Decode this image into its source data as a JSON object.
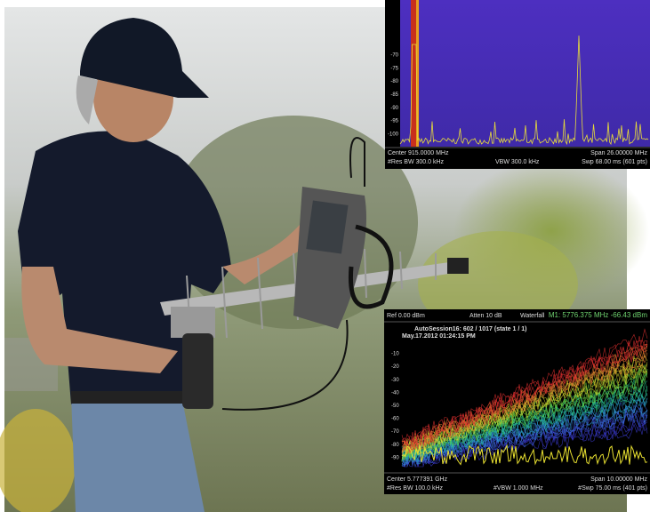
{
  "top_panel": {
    "y_labels": [
      "-70",
      "-75",
      "-80",
      "-85",
      "-90",
      "-95",
      "-100"
    ],
    "footer": [
      "Center 915.0000 MHz",
      "Span 26.00000 MHz",
      "#Res BW 300.0 kHz",
      "VBW 300.0 kHz",
      "Swp 68.00 ms (601 pts)"
    ]
  },
  "bottom_panel": {
    "header": [
      "Ref 0.00 dBm",
      "Atten 10 dB",
      "Waterfall",
      "M1:  5776.375 MHz  -66.43 dBm"
    ],
    "session": [
      "AutoSession16: 602 / 1017 (state 1 / 1)",
      "May.17.2012 01:24:15 PM"
    ],
    "y_labels": [
      "-10",
      "-20",
      "-30",
      "-40",
      "-50",
      "-60",
      "-70",
      "-80",
      "-90"
    ],
    "footer": [
      "Center 5.777391 GHz",
      "Span 10.00000 MHz",
      "#Res BW 100.0 kHz",
      "#VBW 1.000 MHz",
      "#Swp 75.00 ms (401 pts)"
    ]
  }
}
